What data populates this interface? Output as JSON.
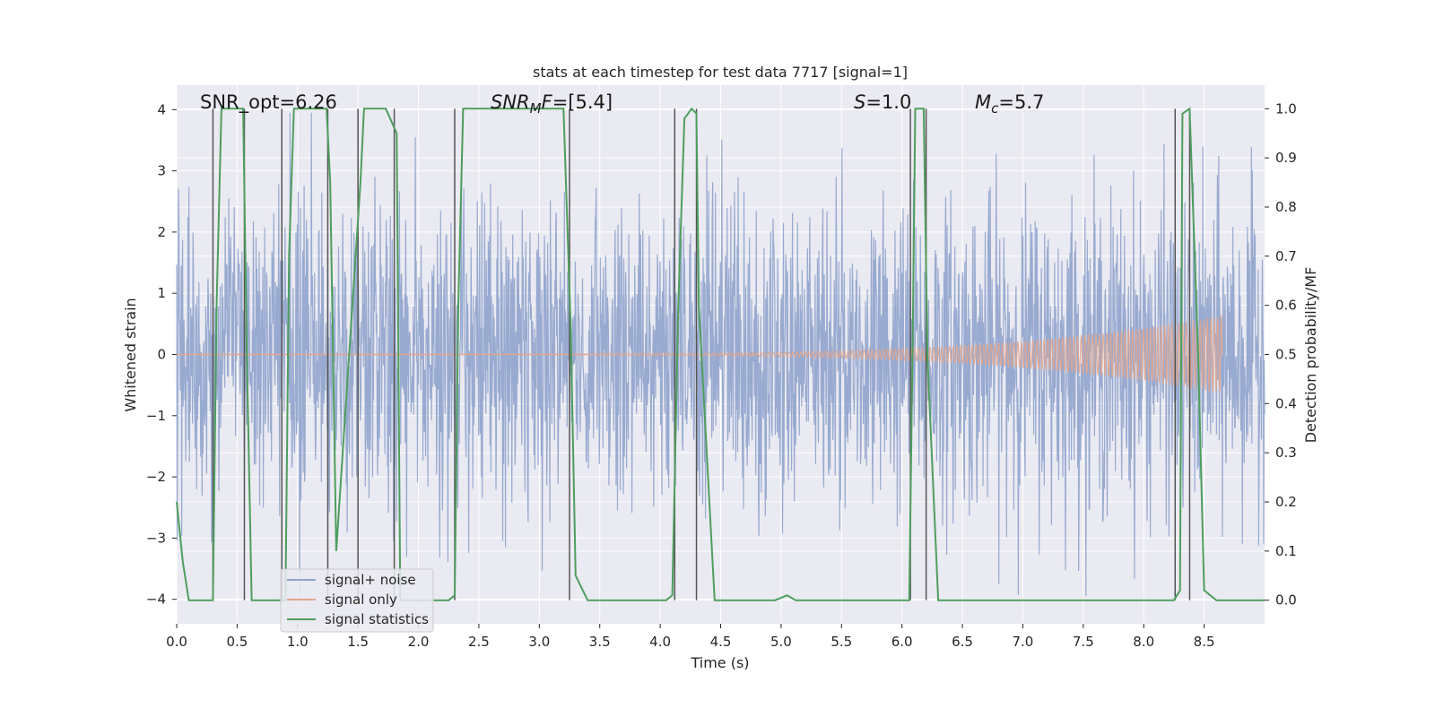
{
  "chart_data": {
    "type": "line",
    "title": "stats at each timestep for test data 7717 [signal=1]",
    "xlabel": "Time (s)",
    "ylabel": "Whitened strain",
    "y2label": "Detection probability/MF",
    "xlim": [
      0,
      9.0
    ],
    "ylim": [
      -4.4,
      4.4
    ],
    "y2lim": [
      -0.048,
      1.048
    ],
    "x_ticks": [
      0.0,
      0.5,
      1.0,
      1.5,
      2.0,
      2.5,
      3.0,
      3.5,
      4.0,
      4.5,
      5.0,
      5.5,
      6.0,
      6.5,
      7.0,
      7.5,
      8.0,
      8.5
    ],
    "x_tick_labels": [
      "0.0",
      "0.5",
      "1.0",
      "1.5",
      "2.0",
      "2.5",
      "3.0",
      "3.5",
      "4.0",
      "4.5",
      "5.0",
      "5.5",
      "6.0",
      "6.5",
      "7.0",
      "7.5",
      "8.0",
      "8.5"
    ],
    "y_ticks": [
      4,
      3,
      2,
      1,
      0,
      -1,
      -2,
      -3,
      -4
    ],
    "y_tick_labels": [
      "4",
      "3",
      "2",
      "1",
      "0",
      "−1",
      "−2",
      "−3",
      "−4"
    ],
    "y2_ticks": [
      1.0,
      0.9,
      0.8,
      0.7,
      0.6,
      0.5,
      0.4,
      0.3,
      0.2,
      0.1,
      0.0
    ],
    "y2_tick_labels": [
      "1.0",
      "0.9",
      "0.8",
      "0.7",
      "0.6",
      "0.5",
      "0.4",
      "0.3",
      "0.2",
      "0.1",
      "0.0"
    ],
    "annotations": [
      {
        "text": "SNR_opt=6.26",
        "x": 0.2
      },
      {
        "text": "SNR_MF=[5.4]",
        "x": 2.6
      },
      {
        "text": "S=1.0",
        "x": 5.6
      },
      {
        "text": "M_c=5.7",
        "x": 6.6
      }
    ],
    "annotation_parts": {
      "snr_opt": "SNR_opt=6.26",
      "snr_mf_main": "SNR",
      "snr_mf_sub": "M",
      "snr_mf_f": "F",
      "snr_mf_value": "=[5.4]",
      "s_var": "S",
      "s_value": "=1.0",
      "mc_var": "M",
      "mc_sub": "c",
      "mc_value": "=5.7"
    },
    "series": [
      {
        "name": "signal+ noise",
        "color": "#8fa3cc",
        "description": "whitened noisy strain, roughly within ±3 with peaks to about ±4"
      },
      {
        "name": "signal only",
        "color": "#e3a58c",
        "x_start": 3.4,
        "x_end": 8.65,
        "amplitude_start": 0.02,
        "amplitude_end": 0.65,
        "description": "chirp signal growing in amplitude until merger near t=8.65"
      },
      {
        "name": "signal statistics",
        "color": "#4e9e5e",
        "axis": "right",
        "x": [
          0.0,
          0.05,
          0.1,
          0.3,
          0.33,
          0.37,
          0.55,
          0.58,
          0.62,
          0.9,
          0.93,
          0.97,
          1.24,
          1.27,
          1.32,
          1.52,
          1.55,
          1.59,
          1.73,
          1.82,
          1.85,
          2.25,
          2.3,
          2.33,
          2.37,
          3.2,
          3.26,
          3.3,
          3.4,
          4.05,
          4.1,
          4.15,
          4.2,
          4.26,
          4.3,
          4.32,
          4.45,
          4.95,
          5.05,
          5.12,
          5.2,
          6.06,
          6.09,
          6.11,
          6.18,
          6.21,
          6.3,
          8.25,
          8.3,
          8.32,
          8.38,
          8.45,
          8.5,
          8.6,
          9.0
        ],
        "y": [
          0.2,
          0.08,
          0.0,
          0.0,
          0.6,
          1.0,
          1.0,
          0.5,
          0.0,
          0.0,
          0.7,
          1.0,
          1.0,
          0.85,
          0.1,
          0.85,
          1.0,
          1.0,
          1.0,
          0.95,
          0.0,
          0.0,
          0.01,
          0.6,
          1.0,
          1.0,
          0.55,
          0.05,
          0.0,
          0.0,
          0.01,
          0.6,
          0.98,
          1.0,
          0.99,
          0.6,
          0.0,
          0.0,
          0.01,
          0.0,
          0.0,
          0.0,
          0.55,
          1.0,
          1.0,
          0.5,
          0.0,
          0.0,
          0.02,
          0.99,
          1.0,
          0.5,
          0.02,
          0.0,
          0.0
        ]
      }
    ],
    "vertical_lines": [
      0.3,
      0.56,
      0.87,
      1.25,
      1.5,
      1.8,
      2.3,
      3.25,
      4.12,
      4.3,
      6.07,
      6.2,
      8.26,
      8.38
    ],
    "vertical_line_color": "#555555",
    "legend": {
      "position": "lower-left",
      "entries": [
        "signal+ noise",
        "signal only",
        "signal statistics"
      ]
    },
    "colors": {
      "plot_bg": "#eaeaf2",
      "grid": "#ffffff",
      "noise": "#8fa3cc",
      "signal": "#e3a58c",
      "stats": "#4e9e5e"
    }
  }
}
